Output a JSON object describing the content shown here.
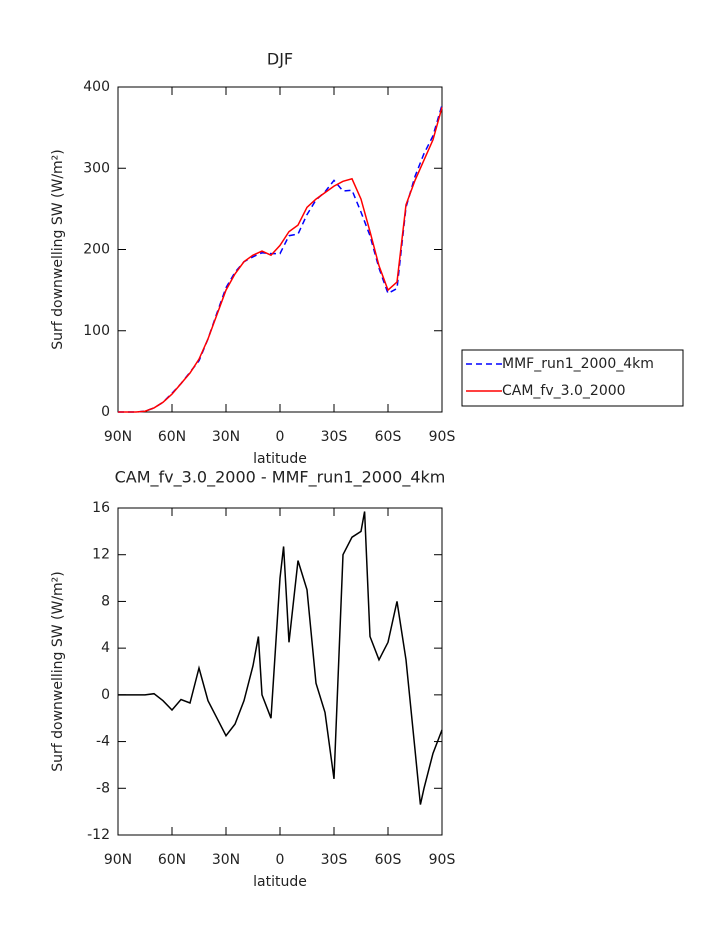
{
  "chart_data": [
    {
      "type": "line",
      "title": "DJF",
      "xlabel": "latitude",
      "ylabel": "Surf downwelling SW (W/m²)",
      "xlim": [
        90,
        -90
      ],
      "xticks": [
        {
          "value": 90,
          "label": "90N"
        },
        {
          "value": 60,
          "label": "60N"
        },
        {
          "value": 30,
          "label": "30N"
        },
        0,
        {
          "value": -30,
          "label": "30S"
        },
        {
          "value": -60,
          "label": "60S"
        },
        {
          "value": -90,
          "label": "90S"
        }
      ],
      "ylim": [
        0,
        400
      ],
      "yticks": [
        0,
        100,
        200,
        300,
        400
      ],
      "legend": "right",
      "x": [
        90,
        85,
        80,
        75,
        70,
        65,
        60,
        55,
        50,
        45,
        40,
        35,
        30,
        25,
        20,
        15,
        10,
        5,
        0,
        -5,
        -10,
        -15,
        -20,
        -25,
        -30,
        -35,
        -40,
        -45,
        -50,
        -55,
        -60,
        -65,
        -70,
        -75,
        -80,
        -85,
        -90
      ],
      "series": [
        {
          "name": "MMF_run1_2000_4km",
          "color": "#0000ff",
          "dash": "dashed",
          "values": [
            0,
            0,
            0,
            1,
            5,
            12,
            23,
            35,
            49,
            63,
            90,
            122,
            153,
            172,
            185,
            191,
            196,
            195,
            195,
            217,
            219,
            243,
            261,
            271,
            285,
            272,
            273,
            246,
            217,
            177,
            146,
            152,
            252,
            290,
            318,
            340,
            378
          ]
        },
        {
          "name": "CAM_fv_3.0_2000",
          "color": "#ff0000",
          "dash": "solid",
          "values": [
            0,
            0,
            0,
            1,
            5,
            12,
            22,
            35,
            48,
            65,
            90,
            120,
            150,
            170,
            185,
            193,
            198,
            193,
            205,
            222,
            230,
            252,
            262,
            270,
            278,
            284,
            287,
            262,
            222,
            180,
            150,
            160,
            255,
            285,
            310,
            335,
            375
          ]
        }
      ]
    },
    {
      "type": "line",
      "title": "CAM_fv_3.0_2000 - MMF_run1_2000_4km",
      "xlabel": "latitude",
      "ylabel": "Surf downwelling SW (W/m²)",
      "xlim": [
        90,
        -90
      ],
      "xticks": [
        {
          "value": 90,
          "label": "90N"
        },
        {
          "value": 60,
          "label": "60N"
        },
        {
          "value": 30,
          "label": "30N"
        },
        0,
        {
          "value": -30,
          "label": "30S"
        },
        {
          "value": -60,
          "label": "60S"
        },
        {
          "value": -90,
          "label": "90S"
        }
      ],
      "ylim": [
        -12,
        16
      ],
      "yticks": [
        -12,
        -8,
        -4,
        0,
        4,
        8,
        12,
        16
      ],
      "color": "#000000",
      "x": [
        90,
        85,
        80,
        75,
        70,
        65,
        60,
        55,
        50,
        45,
        40,
        35,
        30,
        25,
        20,
        15,
        12,
        10,
        5,
        0,
        -2,
        -5,
        -10,
        -15,
        -20,
        -25,
        -30,
        -35,
        -40,
        -45,
        -47,
        -50,
        -55,
        -60,
        -65,
        -70,
        -75,
        -78,
        -80,
        -85,
        -90
      ],
      "values": [
        0,
        0,
        0,
        0,
        0.1,
        -0.5,
        -1.3,
        -0.4,
        -0.7,
        2.3,
        -0.5,
        -2,
        -3.5,
        -2.5,
        -0.5,
        2.5,
        5,
        0,
        -2,
        10,
        12.7,
        4.5,
        11.5,
        9,
        1,
        -1.5,
        -7.2,
        12,
        13.5,
        14,
        15.7,
        5,
        3,
        4.5,
        8,
        3,
        -4.7,
        -9.4,
        -8,
        -5,
        -3
      ]
    }
  ]
}
